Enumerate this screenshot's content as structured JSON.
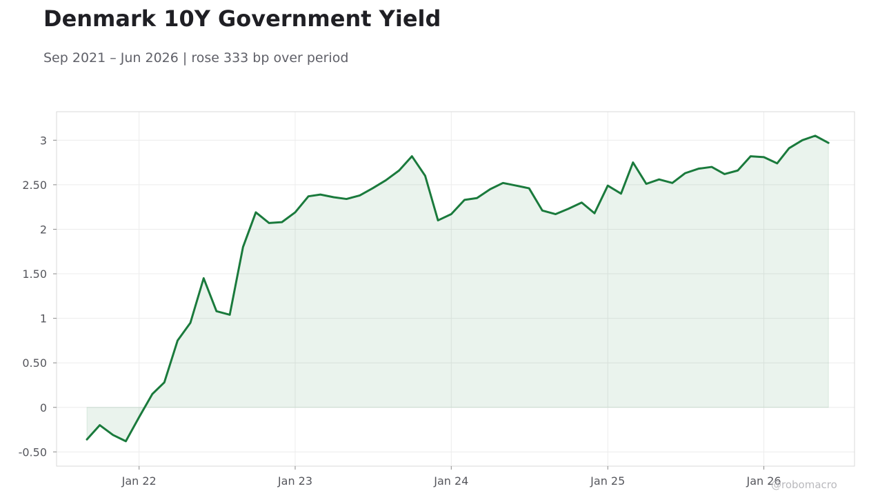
{
  "title": "Denmark 10Y Government Yield",
  "subtitle": "Sep 2021 – Jun 2026 | rose 333 bp over period",
  "watermark": "@robomacro",
  "colors": {
    "line": "#1a7a3c",
    "fill": "#1a7a3c",
    "grid": "#ececec",
    "frame": "#d9d9d9",
    "text": "#55565c"
  },
  "chart_data": {
    "type": "area",
    "title": "Denmark 10Y Government Yield",
    "subtitle": "Sep 2021 – Jun 2026 | rose 333 bp over period",
    "xlabel": "",
    "ylabel": "",
    "xlim": [
      "2021-06-22",
      "2026-08-01"
    ],
    "ylim": [
      -0.66,
      3.32
    ],
    "x_ticks": [
      {
        "date": "2022-01-01",
        "label": "Jan 22"
      },
      {
        "date": "2023-01-01",
        "label": "Jan 23"
      },
      {
        "date": "2024-01-01",
        "label": "Jan 24"
      },
      {
        "date": "2025-01-01",
        "label": "Jan 25"
      },
      {
        "date": "2026-01-01",
        "label": "Jan 26"
      }
    ],
    "y_ticks": [
      {
        "value": 3,
        "label": "3"
      },
      {
        "value": 2.5,
        "label": "2.50"
      },
      {
        "value": 2,
        "label": "2"
      },
      {
        "value": 1.5,
        "label": "1.50"
      },
      {
        "value": 1,
        "label": "1"
      },
      {
        "value": 0.5,
        "label": "0.50"
      },
      {
        "value": 0,
        "label": "0"
      },
      {
        "value": -0.5,
        "label": "-0.50"
      }
    ],
    "grid": true,
    "series": [
      {
        "x": [
          "2021-09-01",
          "2021-10-01",
          "2021-11-01",
          "2021-12-01",
          "2022-01-01",
          "2022-02-01",
          "2022-03-01",
          "2022-04-01",
          "2022-05-01",
          "2022-06-01",
          "2022-07-01",
          "2022-08-01",
          "2022-09-01",
          "2022-10-01",
          "2022-11-01",
          "2022-12-01",
          "2023-01-01",
          "2023-02-01",
          "2023-03-01",
          "2023-04-01",
          "2023-05-01",
          "2023-06-01",
          "2023-07-01",
          "2023-08-01",
          "2023-09-01",
          "2023-10-01",
          "2023-11-01",
          "2023-12-01",
          "2024-01-01",
          "2024-02-01",
          "2024-03-01",
          "2024-04-01",
          "2024-05-01",
          "2024-06-01",
          "2024-07-01",
          "2024-08-01",
          "2024-09-01",
          "2024-10-01",
          "2024-11-01",
          "2024-12-01",
          "2025-01-01",
          "2025-02-01",
          "2025-03-01",
          "2025-04-01",
          "2025-05-01",
          "2025-06-01",
          "2025-07-01",
          "2025-08-01",
          "2025-09-01",
          "2025-10-01",
          "2025-11-01",
          "2025-12-01",
          "2026-01-01",
          "2026-02-01",
          "2026-03-01",
          "2026-04-01",
          "2026-05-01",
          "2026-06-01"
        ],
        "values": [
          -0.36,
          -0.2,
          -0.31,
          -0.38,
          -0.11,
          0.15,
          0.28,
          0.75,
          0.95,
          1.45,
          1.08,
          1.04,
          1.8,
          2.19,
          2.07,
          2.08,
          2.19,
          2.37,
          2.39,
          2.36,
          2.34,
          2.38,
          2.46,
          2.55,
          2.66,
          2.82,
          2.6,
          2.1,
          2.17,
          2.33,
          2.35,
          2.45,
          2.52,
          2.49,
          2.46,
          2.21,
          2.17,
          2.23,
          2.3,
          2.18,
          2.49,
          2.4,
          2.75,
          2.51,
          2.56,
          2.52,
          2.63,
          2.68,
          2.7,
          2.62,
          2.66,
          2.82,
          2.81,
          2.74,
          2.91,
          3.0,
          3.05,
          2.97
        ]
      }
    ]
  }
}
